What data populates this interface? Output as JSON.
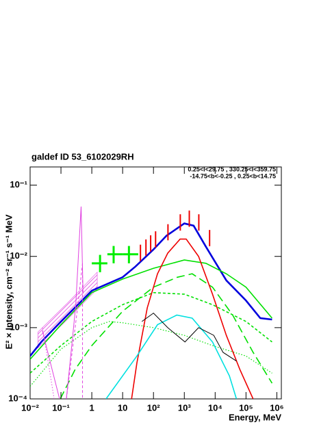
{
  "chart_data": {
    "type": "line",
    "title": "galdef ID 53_6102029RH",
    "annotations": [
      "0.25<l<29.75 , 330.25<l<359.75",
      "-14.75<b<-0.25 , 0.25<b<14.75"
    ],
    "xlabel": "Energy, MeV",
    "ylabel": "E² × Intensity, cm⁻² sr⁻¹ s⁻¹ MeV",
    "xlog": true,
    "ylog": true,
    "xlim": [
      0.01,
      1400000
    ],
    "ylim": [
      0.0001,
      0.18
    ],
    "xticks": [
      {
        "value": 0.01,
        "label": "10⁻²"
      },
      {
        "value": 0.1,
        "label": "10⁻¹"
      },
      1,
      10,
      {
        "value": 100,
        "label": "10²"
      },
      {
        "value": 1000,
        "label": "10³"
      },
      {
        "value": 10000,
        "label": "10⁴"
      },
      {
        "value": 100000,
        "label": "10⁵"
      },
      {
        "value": 1000000,
        "label": "10⁶"
      }
    ],
    "yticks": [
      {
        "value": 0.0001,
        "label": "10⁻⁴"
      },
      {
        "value": 0.001,
        "label": "10⁻³"
      },
      {
        "value": 0.01,
        "label": "10⁻²"
      },
      {
        "value": 0.1,
        "label": "10⁻¹"
      }
    ],
    "series": [
      {
        "color": "#0000dd",
        "width": 2.6,
        "dash": "solid",
        "x": [
          0.01,
          0.023,
          0.1,
          1,
          10,
          26,
          100,
          264,
          1000,
          2000,
          4900,
          23000,
          100000,
          290000,
          700000
        ],
        "values": [
          0.0004,
          0.00063,
          0.00122,
          0.0033,
          0.0051,
          0.0072,
          0.0125,
          0.0195,
          0.029,
          0.027,
          0.0139,
          0.0046,
          0.0024,
          0.00136,
          0.0013
        ]
      },
      {
        "color": "#00e000",
        "width": 1.6,
        "dash": "solid",
        "x": [
          0.01,
          0.1,
          1,
          10,
          100,
          1000,
          5000,
          23000,
          100000,
          700000
        ],
        "values": [
          0.00036,
          0.0011,
          0.0031,
          0.0048,
          0.0068,
          0.0089,
          0.008,
          0.0057,
          0.0037,
          0.00136
        ]
      },
      {
        "color": "#00e000",
        "width": 1.6,
        "dash": "long",
        "x": [
          0.095,
          0.29,
          1,
          10,
          100,
          600,
          1800,
          8200,
          37000,
          170000,
          700000
        ],
        "values": [
          0.0001,
          0.00026,
          0.00056,
          0.0017,
          0.0037,
          0.0051,
          0.0057,
          0.0037,
          0.0015,
          0.00045,
          0.000166
        ]
      },
      {
        "color": "#00e000",
        "width": 1.6,
        "dash": "short",
        "x": [
          0.01,
          0.1,
          1,
          10,
          100,
          1000,
          8200,
          100000,
          700000
        ],
        "values": [
          0.00023,
          0.00056,
          0.00122,
          0.0021,
          0.0031,
          0.00295,
          0.0021,
          0.00122,
          0.00063
        ]
      },
      {
        "color": "#00e000",
        "width": 1.2,
        "dash": "dot",
        "x": [
          0.01,
          0.1,
          1,
          3.7,
          10,
          100,
          1000,
          8200,
          100000,
          700000
        ],
        "values": [
          0.00015,
          0.0005,
          0.001,
          0.00122,
          0.00117,
          0.001,
          0.00078,
          0.00056,
          0.0004,
          0.00023
        ]
      },
      {
        "color": "#ee0000",
        "width": 1.6,
        "dash": "solid",
        "x": [
          19.5,
          29,
          63,
          135,
          290,
          730,
          1150,
          2900,
          8200,
          23000,
          63000,
          170000
        ],
        "values": [
          0.0001,
          0.00032,
          0.0019,
          0.0057,
          0.0111,
          0.0175,
          0.0175,
          0.01,
          0.00295,
          0.00078,
          0.00026,
          0.0001
        ]
      },
      {
        "color": "#00e0e0",
        "width": 1.6,
        "dash": "solid",
        "x": [
          2.9,
          29,
          135,
          570,
          1800,
          8200,
          29000,
          49000
        ],
        "values": [
          0.0001,
          0.0004,
          0.0011,
          0.0015,
          0.00136,
          0.00063,
          0.00021,
          0.0001
        ]
      },
      {
        "color": "#000000",
        "width": 1,
        "dash": "solid",
        "x": [
          42,
          100,
          290,
          1050,
          2900,
          9000,
          18000,
          49000
        ],
        "values": [
          0.00122,
          0.0016,
          0.001,
          0.00063,
          0.001,
          0.00078,
          0.00045,
          0.00034
        ]
      },
      {
        "color": "#e040e0",
        "width": 1,
        "dash": "solid",
        "x": [
          0.025,
          0.04,
          0.09,
          null,
          0.15,
          0.3,
          0.45,
          0.52
        ],
        "values": [
          0.0009,
          0.0004,
          0.0001,
          null,
          0.0001,
          0.002,
          0.05,
          0.003
        ]
      },
      {
        "color": "#e040e0",
        "width": 1,
        "dash": "short",
        "x": [
          0.15,
          0.35,
          0.5,
          0.5
        ],
        "values": [
          0.0001,
          0.002,
          0.008,
          0.0001
        ]
      },
      {
        "color": "#e040e0",
        "width": 1,
        "dash": "dot",
        "x": [
          0.025,
          0.04,
          0.06
        ],
        "values": [
          0.001,
          0.0003,
          0.0001
        ]
      }
    ],
    "band": {
      "color": "#e040e0",
      "x": [
        0.018,
        0.16,
        1.5
      ],
      "lower": [
        0.00052,
        0.0013,
        0.0035
      ],
      "upper": [
        0.00087,
        0.0022,
        0.006
      ]
    },
    "points": [
      {
        "color": "#00ee00",
        "width": 3,
        "x": [
          1.85,
          5.1,
          16
        ],
        "x_lo": [
          1,
          3.2,
          10
        ],
        "x_hi": [
          3.2,
          10,
          32
        ],
        "values": [
          0.008,
          0.0107,
          0.0107
        ],
        "y_lo": [
          0.006,
          0.008,
          0.008
        ],
        "y_hi": [
          0.0105,
          0.014,
          0.014
        ]
      },
      {
        "color": "#ee0000",
        "width": 2,
        "x": [
          37.8,
          57,
          81,
          117,
          295,
          740,
          1450,
          2950,
          6600
        ],
        "values": [
          0.0112,
          0.0133,
          0.0152,
          0.0173,
          0.0218,
          0.03,
          0.034,
          0.03,
          0.0181
        ],
        "y_lo": [
          0.0086,
          0.0102,
          0.0117,
          0.0133,
          0.0168,
          0.023,
          0.026,
          0.023,
          0.0139
        ],
        "y_hi": [
          0.0146,
          0.0173,
          0.0198,
          0.0225,
          0.0283,
          0.039,
          0.044,
          0.039,
          0.0235
        ]
      }
    ]
  }
}
